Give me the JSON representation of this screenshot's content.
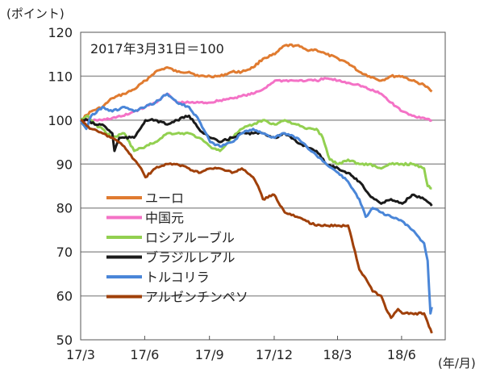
{
  "chart_data": {
    "type": "line",
    "ylabel": "(ポイント)",
    "xlabel": "(年/月)",
    "annotation": "2017年3月31日＝100",
    "ylim": [
      50,
      120
    ],
    "yticks": [
      50,
      60,
      70,
      80,
      90,
      100,
      110,
      120
    ],
    "xlim": [
      "2017-03-31",
      "2018-08-31"
    ],
    "xtick_labels": [
      "17/3",
      "17/6",
      "17/9",
      "17/12",
      "18/3",
      "18/6"
    ],
    "xtick_dates": [
      "2017-03-31",
      "2017-06-30",
      "2017-09-30",
      "2017-12-31",
      "2018-03-31",
      "2018-06-30"
    ],
    "grid": "horizontal",
    "legend_position": "lower-left",
    "series": [
      {
        "name": "ユーロ",
        "color": "#E07B30",
        "points": [
          [
            "2017-03-31",
            100
          ],
          [
            "2017-04-15",
            102
          ],
          [
            "2017-05-01",
            103
          ],
          [
            "2017-05-15",
            105
          ],
          [
            "2017-06-01",
            106
          ],
          [
            "2017-06-15",
            107
          ],
          [
            "2017-07-01",
            109
          ],
          [
            "2017-07-15",
            111
          ],
          [
            "2017-08-01",
            112
          ],
          [
            "2017-08-15",
            111
          ],
          [
            "2017-09-01",
            111
          ],
          [
            "2017-09-15",
            110
          ],
          [
            "2017-10-01",
            110
          ],
          [
            "2017-10-15",
            110
          ],
          [
            "2017-11-01",
            111
          ],
          [
            "2017-11-15",
            111
          ],
          [
            "2017-12-01",
            112
          ],
          [
            "2017-12-15",
            114
          ],
          [
            "2018-01-01",
            115
          ],
          [
            "2018-01-15",
            117
          ],
          [
            "2018-02-01",
            117
          ],
          [
            "2018-02-15",
            116
          ],
          [
            "2018-03-01",
            116
          ],
          [
            "2018-03-15",
            115
          ],
          [
            "2018-04-01",
            114
          ],
          [
            "2018-04-15",
            113
          ],
          [
            "2018-05-01",
            111
          ],
          [
            "2018-05-15",
            110
          ],
          [
            "2018-06-01",
            109
          ],
          [
            "2018-06-15",
            110
          ],
          [
            "2018-07-01",
            110
          ],
          [
            "2018-07-15",
            109
          ],
          [
            "2018-08-01",
            108
          ],
          [
            "2018-08-12",
            106.5
          ]
        ]
      },
      {
        "name": "中国元",
        "color": "#F472C6",
        "points": [
          [
            "2017-03-31",
            100
          ],
          [
            "2017-04-15",
            100
          ],
          [
            "2017-05-01",
            100
          ],
          [
            "2017-05-15",
            100.5
          ],
          [
            "2017-06-01",
            101
          ],
          [
            "2017-06-15",
            102
          ],
          [
            "2017-07-01",
            103
          ],
          [
            "2017-07-15",
            104
          ],
          [
            "2017-08-01",
            106
          ],
          [
            "2017-08-15",
            104
          ],
          [
            "2017-09-01",
            104
          ],
          [
            "2017-09-15",
            104
          ],
          [
            "2017-10-01",
            104
          ],
          [
            "2017-10-15",
            104.5
          ],
          [
            "2017-11-01",
            105
          ],
          [
            "2017-11-15",
            105.5
          ],
          [
            "2017-12-01",
            106
          ],
          [
            "2017-12-15",
            107
          ],
          [
            "2018-01-01",
            109
          ],
          [
            "2018-01-15",
            109
          ],
          [
            "2018-02-01",
            109
          ],
          [
            "2018-02-15",
            109
          ],
          [
            "2018-03-01",
            109
          ],
          [
            "2018-03-15",
            109.5
          ],
          [
            "2018-04-01",
            109
          ],
          [
            "2018-04-15",
            108.5
          ],
          [
            "2018-05-01",
            108
          ],
          [
            "2018-05-15",
            107
          ],
          [
            "2018-06-01",
            106
          ],
          [
            "2018-06-15",
            104
          ],
          [
            "2018-07-01",
            102
          ],
          [
            "2018-07-15",
            101
          ],
          [
            "2018-08-01",
            100.5
          ],
          [
            "2018-08-12",
            100
          ]
        ]
      },
      {
        "name": "ロシアルーブル",
        "color": "#92D050",
        "points": [
          [
            "2017-03-31",
            100
          ],
          [
            "2017-04-10",
            101
          ],
          [
            "2017-04-20",
            99
          ],
          [
            "2017-05-01",
            98
          ],
          [
            "2017-05-15",
            96
          ],
          [
            "2017-06-01",
            97
          ],
          [
            "2017-06-15",
            93
          ],
          [
            "2017-07-01",
            94
          ],
          [
            "2017-07-15",
            95
          ],
          [
            "2017-08-01",
            97
          ],
          [
            "2017-08-15",
            97
          ],
          [
            "2017-09-01",
            97
          ],
          [
            "2017-09-15",
            96
          ],
          [
            "2017-10-01",
            94
          ],
          [
            "2017-10-15",
            93
          ],
          [
            "2017-11-01",
            96
          ],
          [
            "2017-11-15",
            98
          ],
          [
            "2017-12-01",
            99
          ],
          [
            "2017-12-15",
            100
          ],
          [
            "2018-01-01",
            99
          ],
          [
            "2018-01-15",
            100
          ],
          [
            "2018-02-01",
            99
          ],
          [
            "2018-02-15",
            98
          ],
          [
            "2018-03-01",
            98
          ],
          [
            "2018-03-10",
            96
          ],
          [
            "2018-03-20",
            91
          ],
          [
            "2018-04-01",
            90
          ],
          [
            "2018-04-15",
            91
          ],
          [
            "2018-05-01",
            90
          ],
          [
            "2018-05-15",
            90
          ],
          [
            "2018-06-01",
            89
          ],
          [
            "2018-06-15",
            90
          ],
          [
            "2018-07-01",
            90
          ],
          [
            "2018-07-15",
            90
          ],
          [
            "2018-08-01",
            89
          ],
          [
            "2018-08-06",
            85
          ],
          [
            "2018-08-12",
            84.5
          ]
        ]
      },
      {
        "name": "ブラジルレアル",
        "color": "#1a1a1a",
        "points": [
          [
            "2017-03-31",
            100
          ],
          [
            "2017-04-10",
            100
          ],
          [
            "2017-04-20",
            99
          ],
          [
            "2017-05-01",
            99
          ],
          [
            "2017-05-15",
            97
          ],
          [
            "2017-05-18",
            93
          ],
          [
            "2017-05-25",
            96
          ],
          [
            "2017-06-01",
            96
          ],
          [
            "2017-06-15",
            96
          ],
          [
            "2017-07-01",
            100
          ],
          [
            "2017-07-15",
            100
          ],
          [
            "2017-08-01",
            99
          ],
          [
            "2017-08-15",
            100
          ],
          [
            "2017-09-01",
            101
          ],
          [
            "2017-09-15",
            98
          ],
          [
            "2017-10-01",
            96
          ],
          [
            "2017-10-15",
            95
          ],
          [
            "2017-11-01",
            96
          ],
          [
            "2017-11-15",
            97
          ],
          [
            "2017-12-01",
            97
          ],
          [
            "2017-12-15",
            97
          ],
          [
            "2018-01-01",
            96
          ],
          [
            "2018-01-15",
            97
          ],
          [
            "2018-02-01",
            95
          ],
          [
            "2018-02-15",
            94
          ],
          [
            "2018-03-01",
            93
          ],
          [
            "2018-03-15",
            90
          ],
          [
            "2018-04-01",
            89
          ],
          [
            "2018-04-15",
            88
          ],
          [
            "2018-05-01",
            86
          ],
          [
            "2018-05-15",
            83
          ],
          [
            "2018-06-01",
            81
          ],
          [
            "2018-06-15",
            82
          ],
          [
            "2018-07-01",
            81
          ],
          [
            "2018-07-15",
            83
          ],
          [
            "2018-08-01",
            82
          ],
          [
            "2018-08-12",
            80.5
          ]
        ]
      },
      {
        "name": "トルコリラ",
        "color": "#4A86D8",
        "points": [
          [
            "2017-03-31",
            100
          ],
          [
            "2017-04-08",
            98
          ],
          [
            "2017-04-15",
            101
          ],
          [
            "2017-05-01",
            103
          ],
          [
            "2017-05-15",
            102
          ],
          [
            "2017-06-01",
            103
          ],
          [
            "2017-06-15",
            102
          ],
          [
            "2017-07-01",
            103
          ],
          [
            "2017-07-15",
            104
          ],
          [
            "2017-08-01",
            106
          ],
          [
            "2017-08-15",
            104
          ],
          [
            "2017-09-01",
            103
          ],
          [
            "2017-09-15",
            100
          ],
          [
            "2017-10-01",
            95
          ],
          [
            "2017-10-15",
            94
          ],
          [
            "2017-11-01",
            95
          ],
          [
            "2017-11-15",
            97
          ],
          [
            "2017-12-01",
            98
          ],
          [
            "2017-12-15",
            97
          ],
          [
            "2018-01-01",
            96
          ],
          [
            "2018-01-15",
            97
          ],
          [
            "2018-02-01",
            96
          ],
          [
            "2018-02-15",
            94
          ],
          [
            "2018-03-01",
            92
          ],
          [
            "2018-03-15",
            90
          ],
          [
            "2018-04-01",
            88
          ],
          [
            "2018-04-15",
            86
          ],
          [
            "2018-05-01",
            82
          ],
          [
            "2018-05-10",
            78
          ],
          [
            "2018-05-20",
            80
          ],
          [
            "2018-06-01",
            79
          ],
          [
            "2018-06-15",
            78
          ],
          [
            "2018-07-01",
            77
          ],
          [
            "2018-07-15",
            75
          ],
          [
            "2018-08-01",
            72
          ],
          [
            "2018-08-06",
            68
          ],
          [
            "2018-08-10",
            56
          ],
          [
            "2018-08-12",
            57.5
          ]
        ]
      },
      {
        "name": "アルゼンチンペソ",
        "color": "#A0400A",
        "points": [
          [
            "2017-03-31",
            100
          ],
          [
            "2017-04-15",
            98
          ],
          [
            "2017-05-01",
            97
          ],
          [
            "2017-05-15",
            96
          ],
          [
            "2017-06-01",
            94
          ],
          [
            "2017-06-15",
            91
          ],
          [
            "2017-06-25",
            89
          ],
          [
            "2017-07-01",
            87
          ],
          [
            "2017-07-15",
            89
          ],
          [
            "2017-08-01",
            90
          ],
          [
            "2017-08-15",
            90
          ],
          [
            "2017-09-01",
            89
          ],
          [
            "2017-09-15",
            88
          ],
          [
            "2017-10-01",
            89
          ],
          [
            "2017-10-15",
            89
          ],
          [
            "2017-11-01",
            88
          ],
          [
            "2017-11-15",
            89
          ],
          [
            "2017-12-01",
            87
          ],
          [
            "2017-12-08",
            85
          ],
          [
            "2017-12-15",
            82
          ],
          [
            "2017-12-31",
            83
          ],
          [
            "2018-01-15",
            79
          ],
          [
            "2018-02-01",
            78
          ],
          [
            "2018-02-15",
            77
          ],
          [
            "2018-03-01",
            76
          ],
          [
            "2018-03-15",
            76
          ],
          [
            "2018-04-01",
            76
          ],
          [
            "2018-04-15",
            76
          ],
          [
            "2018-04-25",
            70
          ],
          [
            "2018-05-01",
            66
          ],
          [
            "2018-05-10",
            64
          ],
          [
            "2018-05-20",
            61
          ],
          [
            "2018-06-01",
            60
          ],
          [
            "2018-06-08",
            57
          ],
          [
            "2018-06-15",
            55
          ],
          [
            "2018-06-25",
            57
          ],
          [
            "2018-07-01",
            56
          ],
          [
            "2018-07-15",
            56
          ],
          [
            "2018-08-01",
            56
          ],
          [
            "2018-08-08",
            53
          ],
          [
            "2018-08-12",
            51.5
          ]
        ]
      }
    ]
  }
}
